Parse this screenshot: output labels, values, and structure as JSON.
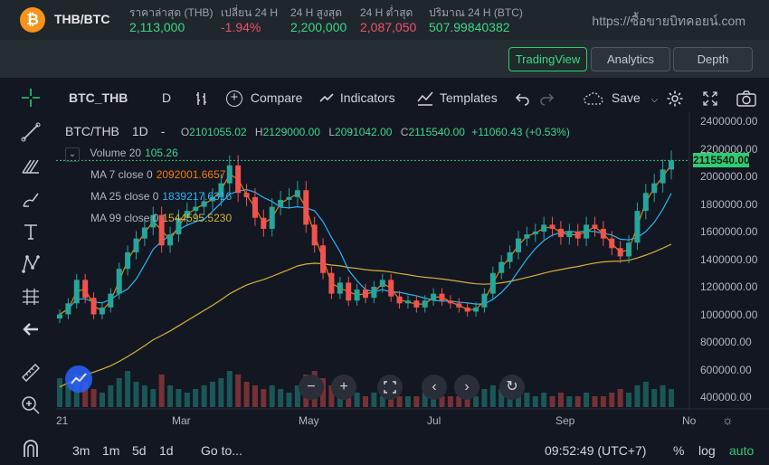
{
  "ticker": {
    "coin_symbol": "₿",
    "pair": "THB/BTC",
    "last_price_label": "ราคาล่าสุด (THB)",
    "last_price": "2,113,000",
    "change_label": "เปลี่ยน 24 H",
    "change": "-1.94%",
    "high_label": "24 H สูงสุด",
    "high": "2,200,000",
    "low_label": "24 H ต่ำสุด",
    "low": "2,087,050",
    "volume_label": "ปริมาณ 24 H (BTC)",
    "volume": "507.99840382",
    "site": "https://ซื้อขายบิทคอยน์.com"
  },
  "views": {
    "tradingview": "TradingView",
    "analytics": "Analytics",
    "depth": "Depth"
  },
  "toolbar": {
    "symbol": "BTC_THB",
    "interval": "D",
    "compare": "Compare",
    "indicators": "Indicators",
    "templates": "Templates",
    "save": "Save"
  },
  "legend": {
    "symbol": "BTC/THB",
    "interval": "1D",
    "dash": "-",
    "o_label": "O",
    "o": "2101055.02",
    "h_label": "H",
    "h": "2129000.00",
    "l_label": "L",
    "l": "2091042.00",
    "c_label": "C",
    "c": "2115540.00",
    "chg": "+11060.43 (+0.53%)",
    "volume_label": "Volume 20",
    "volume_value": "105.26",
    "ma7_label": "MA 7 close 0",
    "ma7_value": "2092001.6657",
    "ma25_label": "MA 25 close 0",
    "ma25_value": "1839217.6316",
    "ma99_label": "MA 99 close 0",
    "ma99_value": "1544595.5230"
  },
  "colors": {
    "up": "#26a69a",
    "down": "#ef5350",
    "ma7": "#f57c00",
    "ma25": "#29b6f6",
    "ma99": "#d4b33a",
    "accent": "#2ecc71"
  },
  "chart_data": {
    "type": "candlestick",
    "title": "",
    "price_ticks": [
      "2400000.00",
      "2200000.00",
      "2000000.00",
      "1800000.00",
      "1600000.00",
      "1400000.00",
      "1200000.00",
      "1000000.00",
      "800000.00",
      "600000.00",
      "400000.00"
    ],
    "last_price_label": "2115540.00",
    "x_ticks": [
      "21",
      "Mar",
      "May",
      "Jul",
      "Sep",
      "No"
    ],
    "ylim": [
      400000,
      2400000
    ],
    "close_path": [
      1000000,
      1080000,
      1250000,
      1120000,
      1000000,
      1050000,
      1150000,
      1330000,
      1450000,
      1550000,
      1630000,
      1720000,
      1500000,
      1580000,
      1700000,
      1750000,
      1780000,
      1820000,
      1850000,
      1950000,
      2080000,
      1880000,
      1850000,
      1700000,
      1620000,
      1780000,
      1830000,
      1850000,
      1900000,
      1650000,
      1500000,
      1300000,
      1150000,
      1230000,
      1100000,
      1180000,
      1120000,
      1200000,
      1250000,
      1130000,
      1080000,
      1100000,
      1050000,
      1100000,
      1150000,
      1100000,
      1080000,
      1050000,
      1020000,
      1050000,
      1150000,
      1300000,
      1380000,
      1450000,
      1550000,
      1580000,
      1600000,
      1650000,
      1620000,
      1560000,
      1600000,
      1550000,
      1650000,
      1620000,
      1550000,
      1480000,
      1420000,
      1520000,
      1750000,
      1880000,
      1950000,
      2050000,
      2115540
    ],
    "volumes": [
      0.8,
      0.6,
      0.9,
      0.7,
      0.5,
      0.4,
      0.6,
      0.8,
      1.0,
      0.7,
      0.6,
      0.5,
      0.9,
      0.6,
      0.5,
      0.4,
      0.5,
      0.6,
      0.7,
      0.8,
      1.0,
      0.9,
      0.7,
      0.6,
      0.5,
      0.6,
      0.5,
      0.4,
      0.6,
      0.9,
      1.0,
      0.8,
      0.6,
      0.5,
      0.4,
      0.4,
      0.3,
      0.4,
      0.3,
      0.4,
      0.3,
      0.3,
      0.3,
      0.4,
      0.3,
      0.3,
      0.3,
      0.3,
      0.4,
      0.3,
      0.5,
      0.6,
      0.5,
      0.4,
      0.5,
      0.4,
      0.3,
      0.4,
      0.3,
      0.4,
      0.3,
      0.3,
      0.4,
      0.3,
      0.3,
      0.4,
      0.5,
      0.4,
      0.6,
      0.7,
      0.5,
      0.6,
      0.5
    ]
  },
  "bottom": {
    "r3m": "3m",
    "r1m": "1m",
    "r5d": "5d",
    "r1d": "1d",
    "goto": "Go to...",
    "time": "09:52:49 (UTC+7)",
    "percent": "%",
    "log": "log",
    "auto": "auto"
  }
}
